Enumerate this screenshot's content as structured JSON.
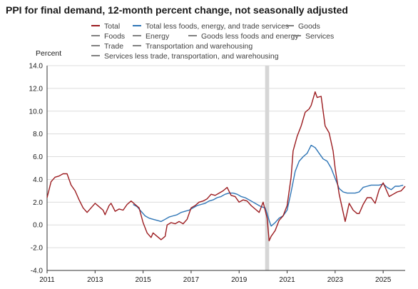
{
  "chart_data": {
    "type": "line",
    "title": "PPI for final demand, 12-month percent change, not seasonally adjusted",
    "ylabel": "Percent",
    "xlabel": "",
    "ylim": [
      -4.0,
      14.0
    ],
    "xlim": [
      "2011-01",
      "2025-12"
    ],
    "y_ticks": [
      "14.0",
      "12.0",
      "10.0",
      "8.0",
      "6.0",
      "4.0",
      "2.0",
      "0.0",
      "-2.0",
      "-4.0"
    ],
    "x_ticks": [
      "2011",
      "2013",
      "2015",
      "2017",
      "2019",
      "2021",
      "2023",
      "2025"
    ],
    "grid": "horizontal",
    "recession_shade": [
      "2020-02",
      "2020-04"
    ],
    "legend": [
      {
        "label": "Total",
        "color": "#9b1b1f",
        "shown": true
      },
      {
        "label": "Total less foods, energy, and trade services",
        "color": "#2e75b6",
        "shown": true
      },
      {
        "label": "Goods",
        "color": "#808080",
        "shown": false
      },
      {
        "label": "Foods",
        "color": "#808080",
        "shown": false
      },
      {
        "label": "Energy",
        "color": "#808080",
        "shown": false
      },
      {
        "label": "Goods less foods and energy",
        "color": "#808080",
        "shown": false
      },
      {
        "label": "Services",
        "color": "#808080",
        "shown": false
      },
      {
        "label": "Trade",
        "color": "#808080",
        "shown": false
      },
      {
        "label": "Transportation and warehousing",
        "color": "#808080",
        "shown": false
      },
      {
        "label": "Services less trade, transportation, and warehousing",
        "color": "#808080",
        "shown": false
      }
    ],
    "series": [
      {
        "name": "Total",
        "color": "#9b1b1f",
        "points": [
          [
            "2011-01",
            2.4
          ],
          [
            "2011-03",
            3.8
          ],
          [
            "2011-05",
            4.2
          ],
          [
            "2011-07",
            4.3
          ],
          [
            "2011-09",
            4.5
          ],
          [
            "2011-11",
            4.5
          ],
          [
            "2012-01",
            3.5
          ],
          [
            "2012-03",
            3.0
          ],
          [
            "2012-05",
            2.2
          ],
          [
            "2012-07",
            1.5
          ],
          [
            "2012-09",
            1.1
          ],
          [
            "2012-11",
            1.5
          ],
          [
            "2013-01",
            1.9
          ],
          [
            "2013-03",
            1.6
          ],
          [
            "2013-05",
            1.3
          ],
          [
            "2013-06",
            0.9
          ],
          [
            "2013-08",
            1.7
          ],
          [
            "2013-09",
            1.9
          ],
          [
            "2013-11",
            1.2
          ],
          [
            "2014-01",
            1.4
          ],
          [
            "2014-03",
            1.3
          ],
          [
            "2014-05",
            1.8
          ],
          [
            "2014-07",
            2.1
          ],
          [
            "2014-09",
            1.8
          ],
          [
            "2014-11",
            1.5
          ],
          [
            "2015-01",
            0.2
          ],
          [
            "2015-03",
            -0.7
          ],
          [
            "2015-05",
            -1.1
          ],
          [
            "2015-06",
            -0.7
          ],
          [
            "2015-08",
            -1.0
          ],
          [
            "2015-10",
            -1.3
          ],
          [
            "2015-12",
            -1.0
          ],
          [
            "2016-01",
            0.0
          ],
          [
            "2016-03",
            0.2
          ],
          [
            "2016-05",
            0.1
          ],
          [
            "2016-07",
            0.3
          ],
          [
            "2016-09",
            0.1
          ],
          [
            "2016-11",
            0.5
          ],
          [
            "2017-01",
            1.5
          ],
          [
            "2017-03",
            1.7
          ],
          [
            "2017-05",
            2.0
          ],
          [
            "2017-07",
            2.1
          ],
          [
            "2017-09",
            2.3
          ],
          [
            "2017-11",
            2.7
          ],
          [
            "2018-01",
            2.6
          ],
          [
            "2018-03",
            2.8
          ],
          [
            "2018-05",
            3.0
          ],
          [
            "2018-07",
            3.3
          ],
          [
            "2018-09",
            2.6
          ],
          [
            "2018-11",
            2.5
          ],
          [
            "2019-01",
            2.0
          ],
          [
            "2019-03",
            2.2
          ],
          [
            "2019-05",
            2.1
          ],
          [
            "2019-07",
            1.7
          ],
          [
            "2019-09",
            1.4
          ],
          [
            "2019-11",
            1.1
          ],
          [
            "2020-01",
            2.0
          ],
          [
            "2020-02",
            1.3
          ],
          [
            "2020-03",
            0.6
          ],
          [
            "2020-04",
            -1.4
          ],
          [
            "2020-05",
            -1.0
          ],
          [
            "2020-07",
            -0.5
          ],
          [
            "2020-09",
            0.4
          ],
          [
            "2020-11",
            0.8
          ],
          [
            "2021-01",
            1.7
          ],
          [
            "2021-03",
            4.2
          ],
          [
            "2021-04",
            6.5
          ],
          [
            "2021-06",
            7.8
          ],
          [
            "2021-08",
            8.7
          ],
          [
            "2021-10",
            9.9
          ],
          [
            "2021-12",
            10.2
          ],
          [
            "2022-01",
            10.5
          ],
          [
            "2022-03",
            11.7
          ],
          [
            "2022-04",
            11.2
          ],
          [
            "2022-06",
            11.3
          ],
          [
            "2022-08",
            8.7
          ],
          [
            "2022-10",
            8.1
          ],
          [
            "2022-12",
            6.5
          ],
          [
            "2023-01",
            5.0
          ],
          [
            "2023-03",
            2.7
          ],
          [
            "2023-05",
            1.1
          ],
          [
            "2023-06",
            0.3
          ],
          [
            "2023-08",
            1.9
          ],
          [
            "2023-10",
            1.3
          ],
          [
            "2023-12",
            1.0
          ],
          [
            "2024-01",
            1.0
          ],
          [
            "2024-03",
            1.8
          ],
          [
            "2024-05",
            2.4
          ],
          [
            "2024-07",
            2.4
          ],
          [
            "2024-09",
            1.9
          ],
          [
            "2024-11",
            3.1
          ],
          [
            "2025-01",
            3.7
          ],
          [
            "2025-02",
            3.3
          ],
          [
            "2025-04",
            2.5
          ],
          [
            "2025-06",
            2.7
          ],
          [
            "2025-08",
            2.9
          ],
          [
            "2025-10",
            3.0
          ],
          [
            "2025-12",
            3.4
          ]
        ]
      },
      {
        "name": "Total less foods, energy, and trade services",
        "color": "#2e75b6",
        "points": [
          [
            "2014-08",
            1.8
          ],
          [
            "2014-10",
            1.6
          ],
          [
            "2014-12",
            1.2
          ],
          [
            "2015-02",
            0.8
          ],
          [
            "2015-04",
            0.6
          ],
          [
            "2015-06",
            0.5
          ],
          [
            "2015-08",
            0.4
          ],
          [
            "2015-10",
            0.3
          ],
          [
            "2015-12",
            0.5
          ],
          [
            "2016-02",
            0.7
          ],
          [
            "2016-04",
            0.8
          ],
          [
            "2016-06",
            0.9
          ],
          [
            "2016-08",
            1.1
          ],
          [
            "2016-10",
            1.2
          ],
          [
            "2016-12",
            1.3
          ],
          [
            "2017-02",
            1.5
          ],
          [
            "2017-04",
            1.7
          ],
          [
            "2017-06",
            1.8
          ],
          [
            "2017-08",
            1.9
          ],
          [
            "2017-10",
            2.1
          ],
          [
            "2017-12",
            2.2
          ],
          [
            "2018-02",
            2.4
          ],
          [
            "2018-04",
            2.5
          ],
          [
            "2018-06",
            2.7
          ],
          [
            "2018-08",
            2.8
          ],
          [
            "2018-10",
            2.8
          ],
          [
            "2018-12",
            2.7
          ],
          [
            "2019-02",
            2.5
          ],
          [
            "2019-04",
            2.4
          ],
          [
            "2019-06",
            2.2
          ],
          [
            "2019-08",
            2.0
          ],
          [
            "2019-10",
            1.8
          ],
          [
            "2019-12",
            1.6
          ],
          [
            "2020-02",
            1.5
          ],
          [
            "2020-03",
            1.0
          ],
          [
            "2020-04",
            0.4
          ],
          [
            "2020-05",
            -0.1
          ],
          [
            "2020-07",
            0.2
          ],
          [
            "2020-09",
            0.6
          ],
          [
            "2020-11",
            0.8
          ],
          [
            "2021-01",
            1.3
          ],
          [
            "2021-03",
            2.9
          ],
          [
            "2021-05",
            4.7
          ],
          [
            "2021-07",
            5.6
          ],
          [
            "2021-09",
            6.0
          ],
          [
            "2021-11",
            6.3
          ],
          [
            "2022-01",
            7.0
          ],
          [
            "2022-03",
            6.8
          ],
          [
            "2022-05",
            6.3
          ],
          [
            "2022-07",
            5.8
          ],
          [
            "2022-09",
            5.6
          ],
          [
            "2022-11",
            5.0
          ],
          [
            "2023-01",
            4.1
          ],
          [
            "2023-03",
            3.2
          ],
          [
            "2023-05",
            2.9
          ],
          [
            "2023-07",
            2.8
          ],
          [
            "2023-09",
            2.8
          ],
          [
            "2023-11",
            2.8
          ],
          [
            "2024-01",
            2.9
          ],
          [
            "2024-03",
            3.3
          ],
          [
            "2024-05",
            3.4
          ],
          [
            "2024-07",
            3.5
          ],
          [
            "2024-09",
            3.5
          ],
          [
            "2024-11",
            3.5
          ],
          [
            "2025-01",
            3.6
          ],
          [
            "2025-03",
            3.3
          ],
          [
            "2025-05",
            3.1
          ],
          [
            "2025-07",
            3.4
          ],
          [
            "2025-09",
            3.4
          ],
          [
            "2025-11",
            3.5
          ]
        ]
      }
    ]
  }
}
